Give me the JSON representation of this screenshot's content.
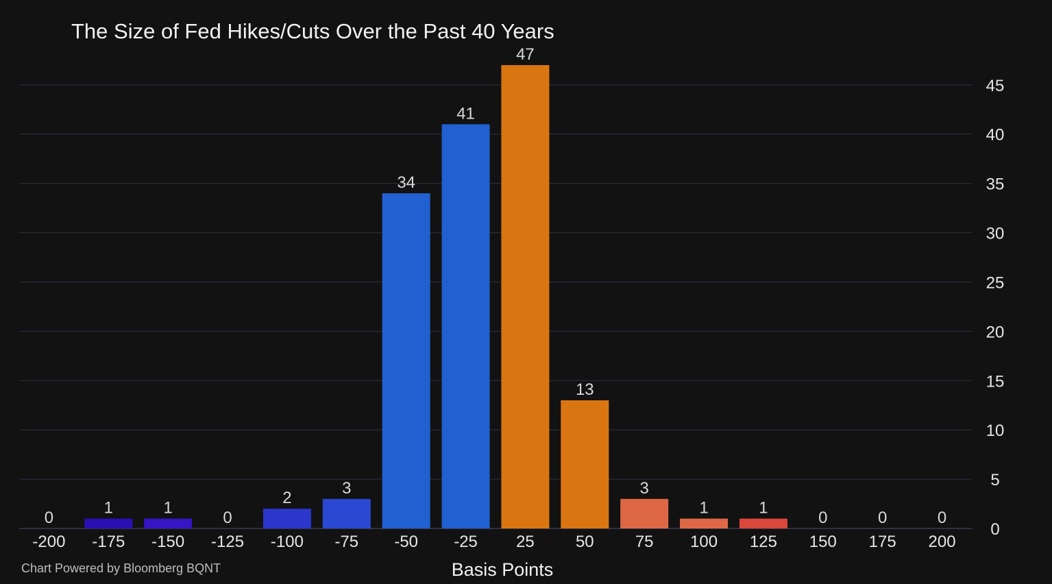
{
  "title": "The Size of Fed Hikes/Cuts Over the Past 40 Years",
  "credit": "Chart Powered by Bloomberg BQNT",
  "chart_data": {
    "type": "bar",
    "title": "The Size of Fed Hikes/Cuts Over the Past 40 Years",
    "xlabel": "Basis Points",
    "ylabel": "",
    "categories": [
      "-200",
      "-175",
      "-150",
      "-125",
      "-100",
      "-75",
      "-50",
      "-25",
      "25",
      "50",
      "75",
      "100",
      "125",
      "150",
      "175",
      "200"
    ],
    "values": [
      0,
      1,
      1,
      0,
      2,
      3,
      34,
      41,
      47,
      13,
      3,
      1,
      1,
      0,
      0,
      0
    ],
    "bar_colors": [
      "#2a0fb3",
      "#2a0fb3",
      "#3416c4",
      "#2b25c7",
      "#2b37cc",
      "#2a48d2",
      "#2160d0",
      "#2160d0",
      "#d97611",
      "#d97611",
      "#de6845",
      "#de6845",
      "#d9483b",
      "#d9483b",
      "#d9483b",
      "#d9483b"
    ],
    "ylim": [
      0,
      47
    ],
    "yticks": [
      0,
      5,
      10,
      15,
      20,
      25,
      30,
      35,
      40,
      45
    ],
    "y_axis_side": "right",
    "grid": true,
    "data_labels": true,
    "legend": "none"
  },
  "colors": {
    "background": "#121212",
    "grid": "#2f3044",
    "text": "#e6e6e6"
  }
}
